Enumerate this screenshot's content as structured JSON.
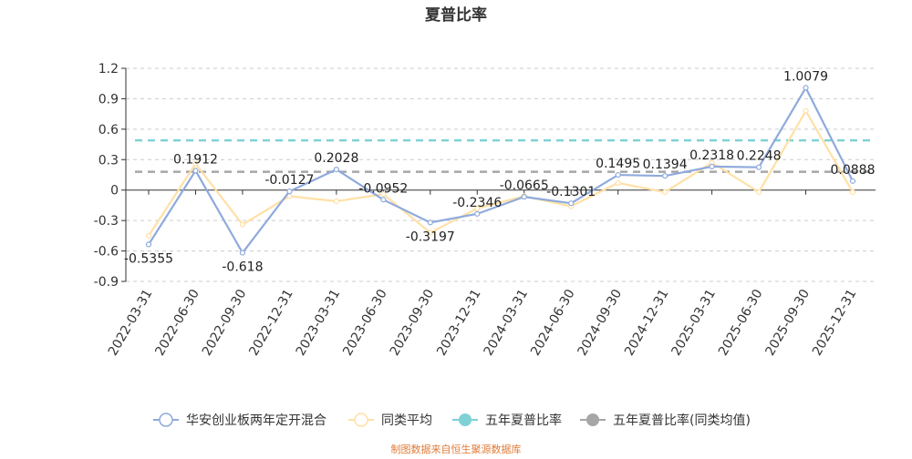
{
  "colors": {
    "fund": "#8faadc",
    "peer": "#ffe0a6",
    "five_year": "#7fd1d6",
    "five_year_peer": "#a6a6a6",
    "axis": "#333333",
    "grid": "#cccccc",
    "source": "#e07b39"
  },
  "source_note": "制图数据来自恒生聚源数据库",
  "chart_data": {
    "type": "line",
    "title": "夏普比率",
    "xlabel": "",
    "ylabel": "",
    "ylim": [
      -0.9,
      1.2
    ],
    "yticks": [
      -0.9,
      -0.6,
      -0.3,
      0,
      0.3,
      0.6,
      0.9,
      1.2
    ],
    "ytick_labels": [
      "-0.9",
      "-0.6",
      "-0.3",
      "0",
      "0.3",
      "0.6",
      "0.9",
      "1.2"
    ],
    "grid": true,
    "legend_position": "bottom",
    "categories": [
      "2022-03-31",
      "2022-06-30",
      "2022-09-30",
      "2022-12-31",
      "2023-03-31",
      "2023-06-30",
      "2023-09-30",
      "2023-12-31",
      "2024-03-31",
      "2024-06-30",
      "2024-09-30",
      "2024-12-31",
      "2025-03-31",
      "2025-06-30",
      "2025-09-30",
      "2025-12-31"
    ],
    "series": [
      {
        "name": "华安创业板两年定开混合",
        "values": [
          -0.5355,
          0.1912,
          -0.618,
          -0.0127,
          0.2028,
          -0.0952,
          -0.3197,
          -0.2346,
          -0.0665,
          -0.1301,
          0.1495,
          0.1394,
          0.2318,
          0.2248,
          1.0079,
          0.0888
        ],
        "labels": [
          "-0.5355",
          "0.1912",
          "-0.618",
          "-0.0127",
          "0.2028",
          "-0.0952",
          "-0.3197",
          "-0.2346",
          "-0.0665",
          "-0.1301",
          "0.1495",
          "0.1394",
          "0.2318",
          "0.2248",
          "1.0079",
          "0.0888"
        ]
      },
      {
        "name": "同类平均",
        "values": [
          -0.45,
          0.26,
          -0.34,
          -0.06,
          -0.11,
          -0.04,
          -0.42,
          -0.18,
          -0.06,
          -0.16,
          0.07,
          -0.02,
          0.27,
          -0.02,
          0.78,
          -0.02
        ]
      },
      {
        "name": "五年夏普比率",
        "values": [
          0.49,
          0.49,
          0.49,
          0.49,
          0.49,
          0.49,
          0.49,
          0.49,
          0.49,
          0.49,
          0.49,
          0.49,
          0.49,
          0.49,
          0.49,
          0.49
        ]
      },
      {
        "name": "五年夏普比率(同类均值)",
        "values": [
          0.18,
          0.18,
          0.18,
          0.18,
          0.18,
          0.18,
          0.18,
          0.18,
          0.18,
          0.18,
          0.18,
          0.18,
          0.18,
          0.18,
          0.18,
          0.18
        ]
      }
    ]
  }
}
